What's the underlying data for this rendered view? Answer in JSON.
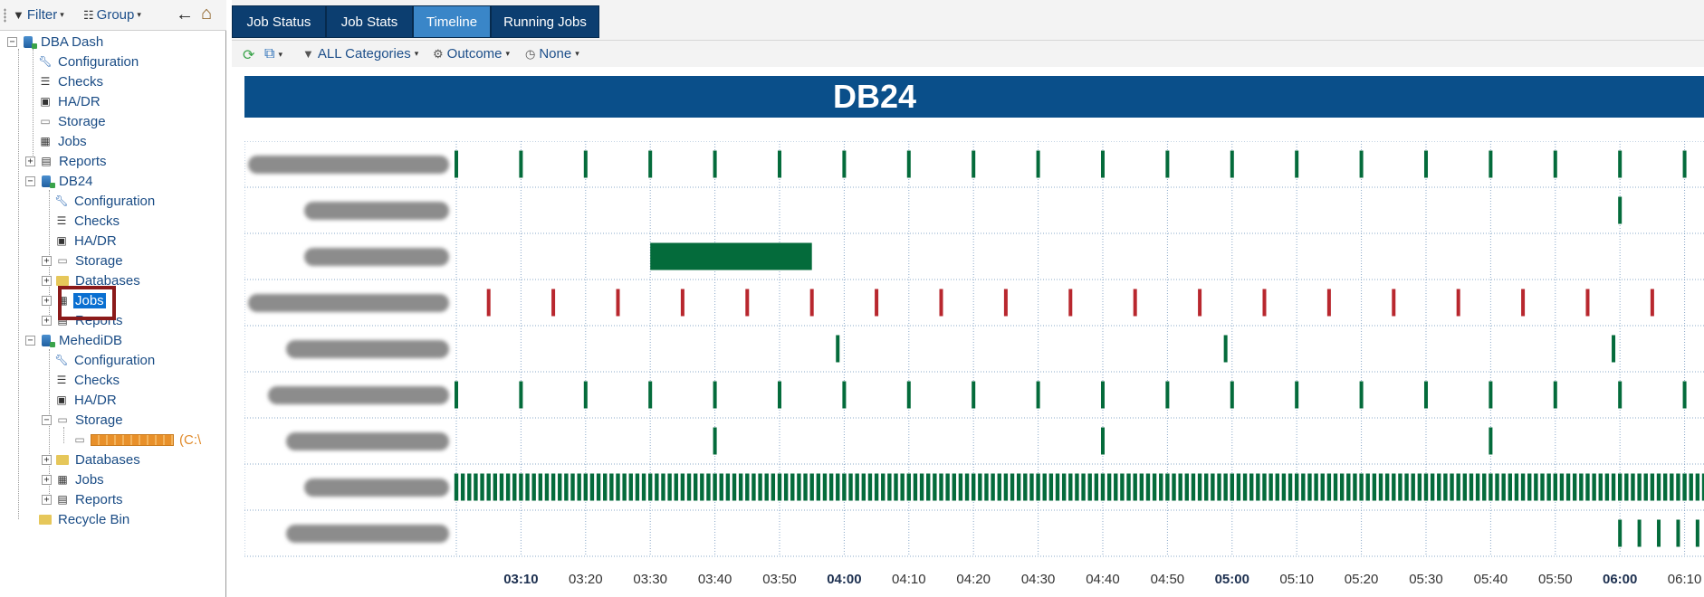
{
  "left_toolbar": {
    "filter_label": "Filter",
    "group_label": "Group",
    "back_icon": "arrow-left-icon",
    "home_icon": "home-icon"
  },
  "tree": {
    "root": "DBA Dash",
    "root_children": [
      "Configuration",
      "Checks",
      "HA/DR",
      "Storage",
      "Jobs",
      "Reports"
    ],
    "db24": {
      "label": "DB24",
      "children": [
        "Configuration",
        "Checks",
        "HA/DR",
        "Storage",
        "Databases",
        "Jobs",
        "Reports"
      ],
      "selected": "Jobs"
    },
    "mehedi": {
      "label": "MehediDB",
      "children": [
        "Configuration",
        "Checks",
        "HA/DR",
        "Storage",
        "Databases",
        "Jobs",
        "Reports"
      ],
      "storage_drive": "(C:\\"
    },
    "recycle_bin": "Recycle Bin"
  },
  "tabs": [
    {
      "label": "Job Status",
      "active": false
    },
    {
      "label": "Job Stats",
      "active": false
    },
    {
      "label": "Timeline",
      "active": true
    },
    {
      "label": "Running Jobs",
      "active": false
    }
  ],
  "sub_toolbar": {
    "categories": "ALL Categories",
    "outcome": "Outcome",
    "time_group": "None"
  },
  "banner_title": "DB24",
  "colors": {
    "success": "#046b3b",
    "failed": "#b8272e",
    "banner": "#0a4f8a",
    "tab": "#0c3e70",
    "tab_active": "#3a86c8"
  },
  "chart_data": {
    "type": "timeline",
    "x_axis": {
      "start": "03:00",
      "end": "06:13",
      "tick_labels": [
        "03:10",
        "03:20",
        "03:30",
        "03:40",
        "03:50",
        "04:00",
        "04:10",
        "04:20",
        "04:30",
        "04:40",
        "04:50",
        "05:00",
        "05:10",
        "05:20",
        "05:30",
        "05:40",
        "05:50",
        "06:00",
        "06:10"
      ],
      "major_ticks": [
        "03:10",
        "04:00",
        "05:00",
        "06:00"
      ]
    },
    "rows": [
      {
        "runs": [
          "03:00",
          "03:10",
          "03:20",
          "03:30",
          "03:40",
          "03:50",
          "04:00",
          "04:10",
          "04:20",
          "04:30",
          "04:40",
          "04:50",
          "05:00",
          "05:10",
          "05:20",
          "05:30",
          "05:40",
          "05:50",
          "06:00",
          "06:10"
        ],
        "outcome": "success"
      },
      {
        "runs": [
          "06:00"
        ],
        "outcome": "success"
      },
      {
        "blocks": [
          {
            "start": "03:30",
            "end": "03:55"
          }
        ],
        "outcome": "success"
      },
      {
        "runs": [
          "03:05",
          "03:15",
          "03:25",
          "03:35",
          "03:45",
          "03:55",
          "04:05",
          "04:15",
          "04:25",
          "04:35",
          "04:45",
          "04:55",
          "05:05",
          "05:15",
          "05:25",
          "05:35",
          "05:45",
          "05:55",
          "06:05"
        ],
        "outcome": "failed"
      },
      {
        "runs": [
          "03:59",
          "04:59",
          "05:59"
        ],
        "outcome": "success"
      },
      {
        "runs": [
          "03:00",
          "03:10",
          "03:20",
          "03:30",
          "03:40",
          "03:50",
          "04:00",
          "04:10",
          "04:20",
          "04:30",
          "04:40",
          "04:50",
          "05:00",
          "05:10",
          "05:20",
          "05:30",
          "05:40",
          "05:50",
          "06:00",
          "06:10"
        ],
        "outcome": "success"
      },
      {
        "runs": [
          "03:40",
          "04:40",
          "05:40"
        ],
        "outcome": "success"
      },
      {
        "dense": {
          "start": "03:00",
          "end": "06:13",
          "every_minutes": 1
        },
        "outcome": "success"
      },
      {
        "runs": [
          "06:00",
          "06:03",
          "06:06",
          "06:09",
          "06:12"
        ],
        "outcome": "success"
      }
    ]
  }
}
